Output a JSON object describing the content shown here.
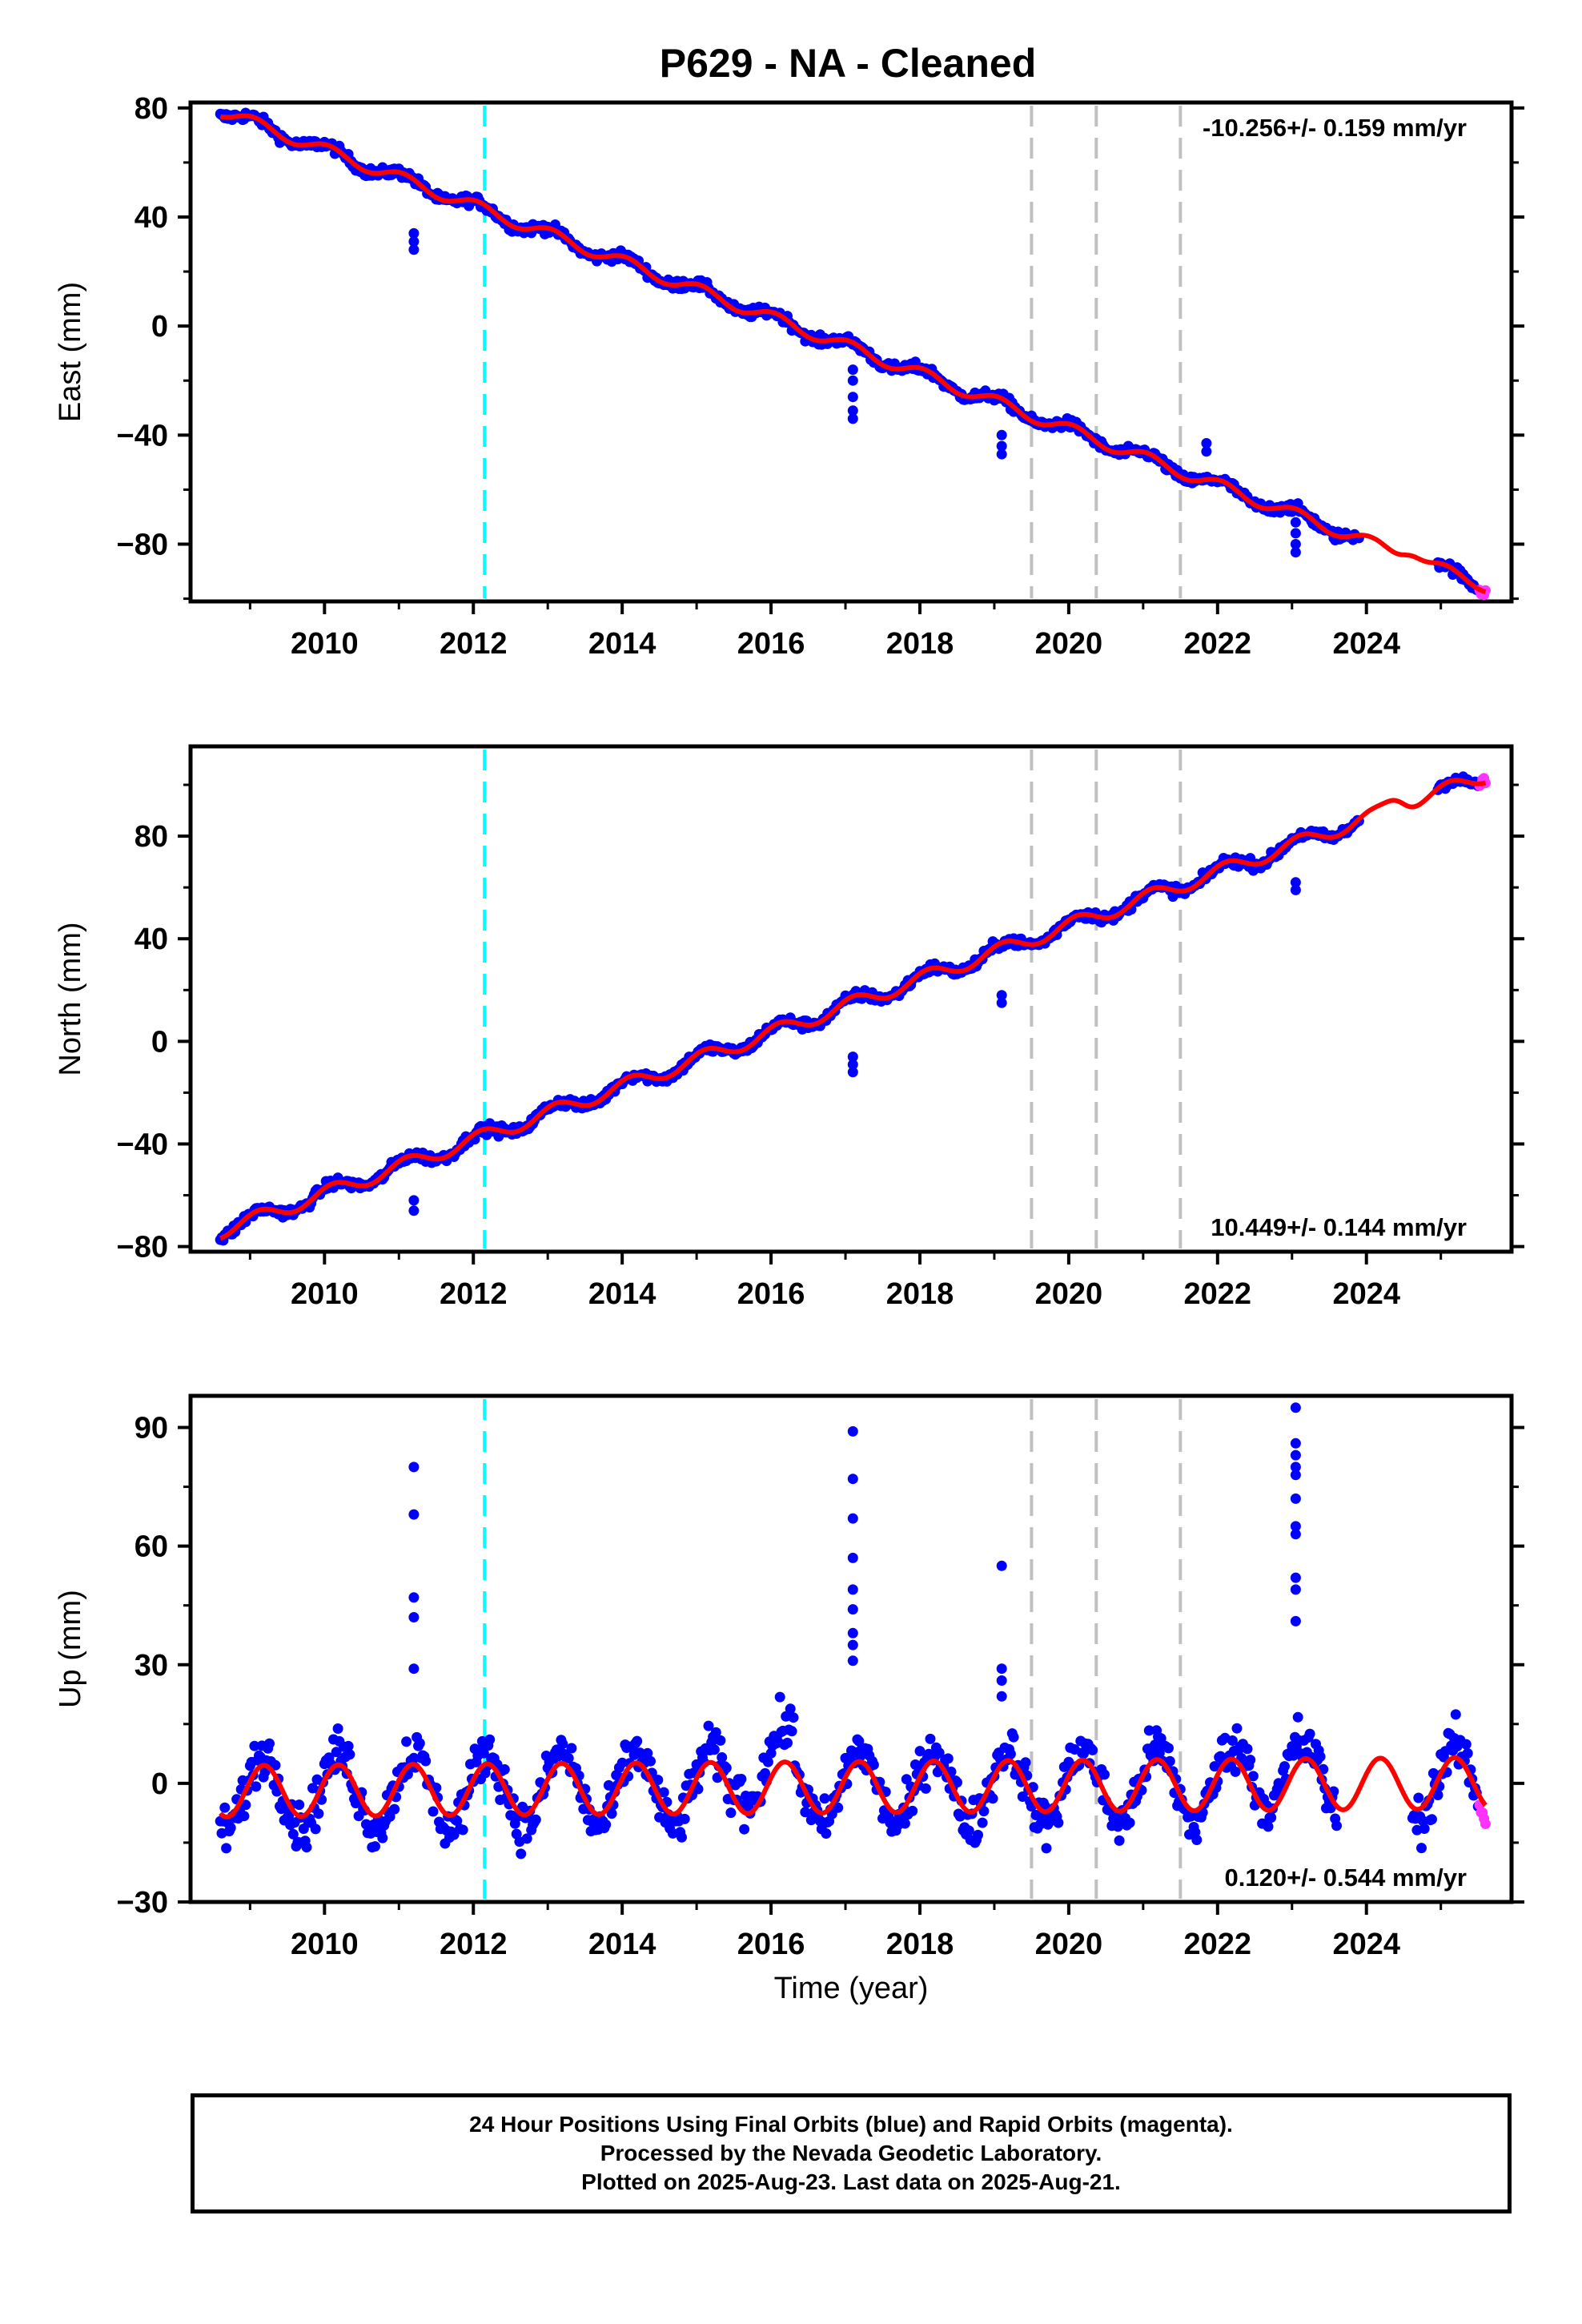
{
  "title": "P629  - NA - Cleaned",
  "colors": {
    "final": "#0000ff",
    "rapid": "#ff33ff",
    "model": "#ff0000",
    "equip_line": "#00ffff",
    "other_line": "#c0c0c0"
  },
  "xlabel": "Time (year)",
  "xticks": [
    2010,
    2012,
    2014,
    2016,
    2018,
    2020,
    2022,
    2024
  ],
  "xlim": [
    2008.2,
    2025.95
  ],
  "event_lines": [
    {
      "t": 2012.15,
      "kind": "equip"
    },
    {
      "t": 2019.5,
      "kind": "other"
    },
    {
      "t": 2020.37,
      "kind": "other"
    },
    {
      "t": 2021.5,
      "kind": "other"
    }
  ],
  "chart_data": [
    {
      "type": "scatter",
      "name": "east",
      "ylabel": "East (mm)",
      "rate": "-10.256+/- 0.159 mm/yr",
      "rate_pos": "top-right",
      "ylim": [
        -101,
        82
      ],
      "yticks": [
        80,
        40,
        0,
        -40,
        -80
      ],
      "yminor": [
        60,
        20,
        -20,
        -60,
        -100
      ],
      "t0": 2008.6,
      "t1": 2025.6,
      "v0": 79,
      "slope": -10.256,
      "seas_amp": 2.2,
      "seas_phase": 1.2,
      "noise": 1.3,
      "model_bumps": [
        [
          2024.6,
          3.0
        ]
      ],
      "gaps": [
        [
          2023.9,
          2024.95
        ]
      ],
      "rapid_from": 2025.5,
      "offsets": [
        {
          "t": 2011.2,
          "vals": [
            34,
            31,
            28
          ]
        },
        {
          "t": 2017.1,
          "vals": [
            -16,
            -20,
            -26,
            -31,
            -34
          ]
        },
        {
          "t": 2019.1,
          "vals": [
            -40,
            -44,
            -47
          ]
        },
        {
          "t": 2021.85,
          "vals": [
            -43,
            -46
          ]
        },
        {
          "t": 2023.05,
          "vals": [
            -72,
            -76,
            -80,
            -83
          ]
        }
      ]
    },
    {
      "type": "scatter",
      "name": "north",
      "ylabel": "North (mm)",
      "rate": "10.449+/- 0.144 mm/yr",
      "rate_pos": "bottom-right",
      "ylim": [
        -82,
        115
      ],
      "yticks": [
        80,
        40,
        0,
        -40,
        -80
      ],
      "yminor": [
        100,
        60,
        20,
        -20,
        -60
      ],
      "t0": 2008.6,
      "t1": 2025.6,
      "v0": -74,
      "slope": 10.449,
      "seas_amp": 2.8,
      "seas_phase": 0.9,
      "noise": 1.4,
      "model_bumps": [
        [
          2024.4,
          3.5
        ]
      ],
      "gaps": [
        [
          2023.9,
          2024.95
        ]
      ],
      "rapid_from": 2025.5,
      "offsets": [
        {
          "t": 2011.2,
          "vals": [
            -62,
            -66
          ]
        },
        {
          "t": 2017.1,
          "vals": [
            -6,
            -9,
            -12
          ]
        },
        {
          "t": 2019.1,
          "vals": [
            18,
            15
          ]
        },
        {
          "t": 2023.05,
          "vals": [
            62,
            59
          ]
        }
      ]
    },
    {
      "type": "scatter",
      "name": "up",
      "ylabel": "Up (mm)",
      "rate": "0.120+/- 0.544 mm/yr",
      "rate_pos": "bottom-right",
      "ylim": [
        -30,
        98
      ],
      "yticks": [
        90,
        60,
        30,
        0,
        -30
      ],
      "yminor": [
        75,
        45,
        15,
        -15
      ],
      "t0": 2008.6,
      "t1": 2025.6,
      "v0": -2,
      "slope": 0.12,
      "seas_amp": 6.5,
      "seas_phase": 0.4,
      "noise": 4.2,
      "model_bumps": [],
      "gaps": [
        [
          2023.6,
          2024.6
        ]
      ],
      "rapid_from": 2025.5,
      "offsets": [
        {
          "t": 2011.2,
          "vals": [
            80,
            68,
            47,
            42,
            29
          ]
        },
        {
          "t": 2017.1,
          "vals": [
            89,
            77,
            67,
            57,
            49,
            44,
            38,
            35,
            31
          ]
        },
        {
          "t": 2019.1,
          "vals": [
            55,
            29,
            26,
            22
          ]
        },
        {
          "t": 2023.05,
          "vals": [
            95,
            86,
            83,
            80,
            78,
            72,
            65,
            63,
            52,
            49,
            41
          ]
        }
      ]
    }
  ],
  "caption": {
    "line1": "24 Hour Positions Using Final Orbits (blue) and Rapid Orbits (magenta).",
    "line2": "Processed by the Nevada Geodetic Laboratory.",
    "line3": "Plotted on 2025-Aug-23. Last data on 2025-Aug-21."
  }
}
